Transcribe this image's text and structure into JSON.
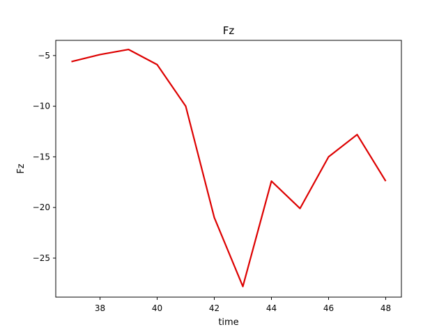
{
  "chart_data": {
    "type": "line",
    "title": "Fz",
    "xlabel": "time",
    "ylabel": "Fz",
    "xlim": [
      36.45,
      48.55
    ],
    "ylim": [
      -28.85,
      -3.5
    ],
    "x_ticks": [
      38,
      40,
      42,
      44,
      46,
      48
    ],
    "y_ticks": [
      -5,
      -10,
      -15,
      -20,
      -25
    ],
    "x_tick_labels": [
      "38",
      "40",
      "42",
      "44",
      "46",
      "48"
    ],
    "y_tick_labels": [
      "−5",
      "−10",
      "−15",
      "−20",
      "−25"
    ],
    "grid": false,
    "series": [
      {
        "color": "#dd0000",
        "x": [
          37,
          38,
          39,
          40,
          41,
          42,
          43,
          44,
          45,
          46,
          47,
          48
        ],
        "y": [
          -5.6,
          -4.9,
          -4.4,
          -5.9,
          -10.0,
          -21.0,
          -27.8,
          -17.4,
          -20.1,
          -15.0,
          -12.8,
          -17.4
        ]
      }
    ]
  }
}
